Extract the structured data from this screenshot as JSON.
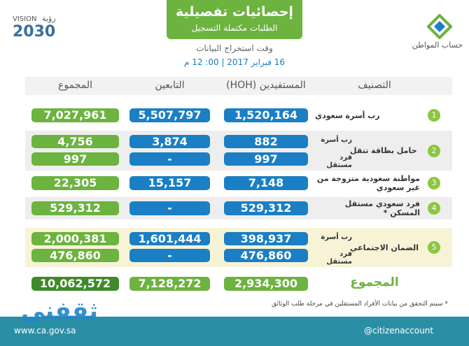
{
  "header": {
    "title": "إحصائيات تفصيلية",
    "subtitle": "الطلبات مكتملة التسجيل",
    "timestamp_label": "وقت استخراج البيانات",
    "timestamp": "16 فبراير 2017 | 00: 12 م"
  },
  "logos": {
    "vision_word": "VISION",
    "vision_arabic": "رؤية",
    "vision_year": "2030",
    "citizen_account": "حساب المواطن"
  },
  "table": {
    "columns": [
      "المجموع",
      "التابعين",
      "المستفيدين (HOH)",
      "التصنيف"
    ],
    "rows": [
      {
        "number": "1",
        "label": "رب أسرة سعودي",
        "lines": [
          {
            "beneficiaries": "1,520,164",
            "dependents": "5,507,797",
            "total": "7,027,961"
          }
        ]
      },
      {
        "number": "2",
        "label": "حامل بطاقة تنقل",
        "lines": [
          {
            "sublabel": "رب أسرة",
            "beneficiaries": "882",
            "dependents": "3,874",
            "total": "4,756"
          },
          {
            "sublabel": "فرد مستقل",
            "beneficiaries": "997",
            "dependents": "-",
            "total": "997"
          }
        ]
      },
      {
        "number": "3",
        "label": "مواطنة سعودية متزوجة من غير سعودي",
        "lines": [
          {
            "beneficiaries": "7,148",
            "dependents": "15,157",
            "total": "22,305"
          }
        ]
      },
      {
        "number": "4",
        "label": "فرد سعودي مستقل المسكن *",
        "lines": [
          {
            "beneficiaries": "529,312",
            "dependents": "-",
            "total": "529,312"
          }
        ]
      },
      {
        "number": "5",
        "label": "الضمان الاجتماعي",
        "lines": [
          {
            "sublabel": "رب أسرة",
            "beneficiaries": "398,937",
            "dependents": "1,601,444",
            "total": "2,000,381"
          },
          {
            "sublabel": "فرد مستقل",
            "beneficiaries": "476,860",
            "dependents": "-",
            "total": "476,860"
          }
        ]
      }
    ],
    "total": {
      "label": "المجموع",
      "beneficiaries": "2,934,300",
      "dependents": "7,128,272",
      "total": "10,062,572"
    }
  },
  "footnote": "* سيتم التحقق من بيانات الأفراد المستقلين في مرحلة طلب الوثائق",
  "footer": {
    "website": "www.ca.gov.sa",
    "handle": "@citizenaccount"
  },
  "watermark": "ثقفني"
}
